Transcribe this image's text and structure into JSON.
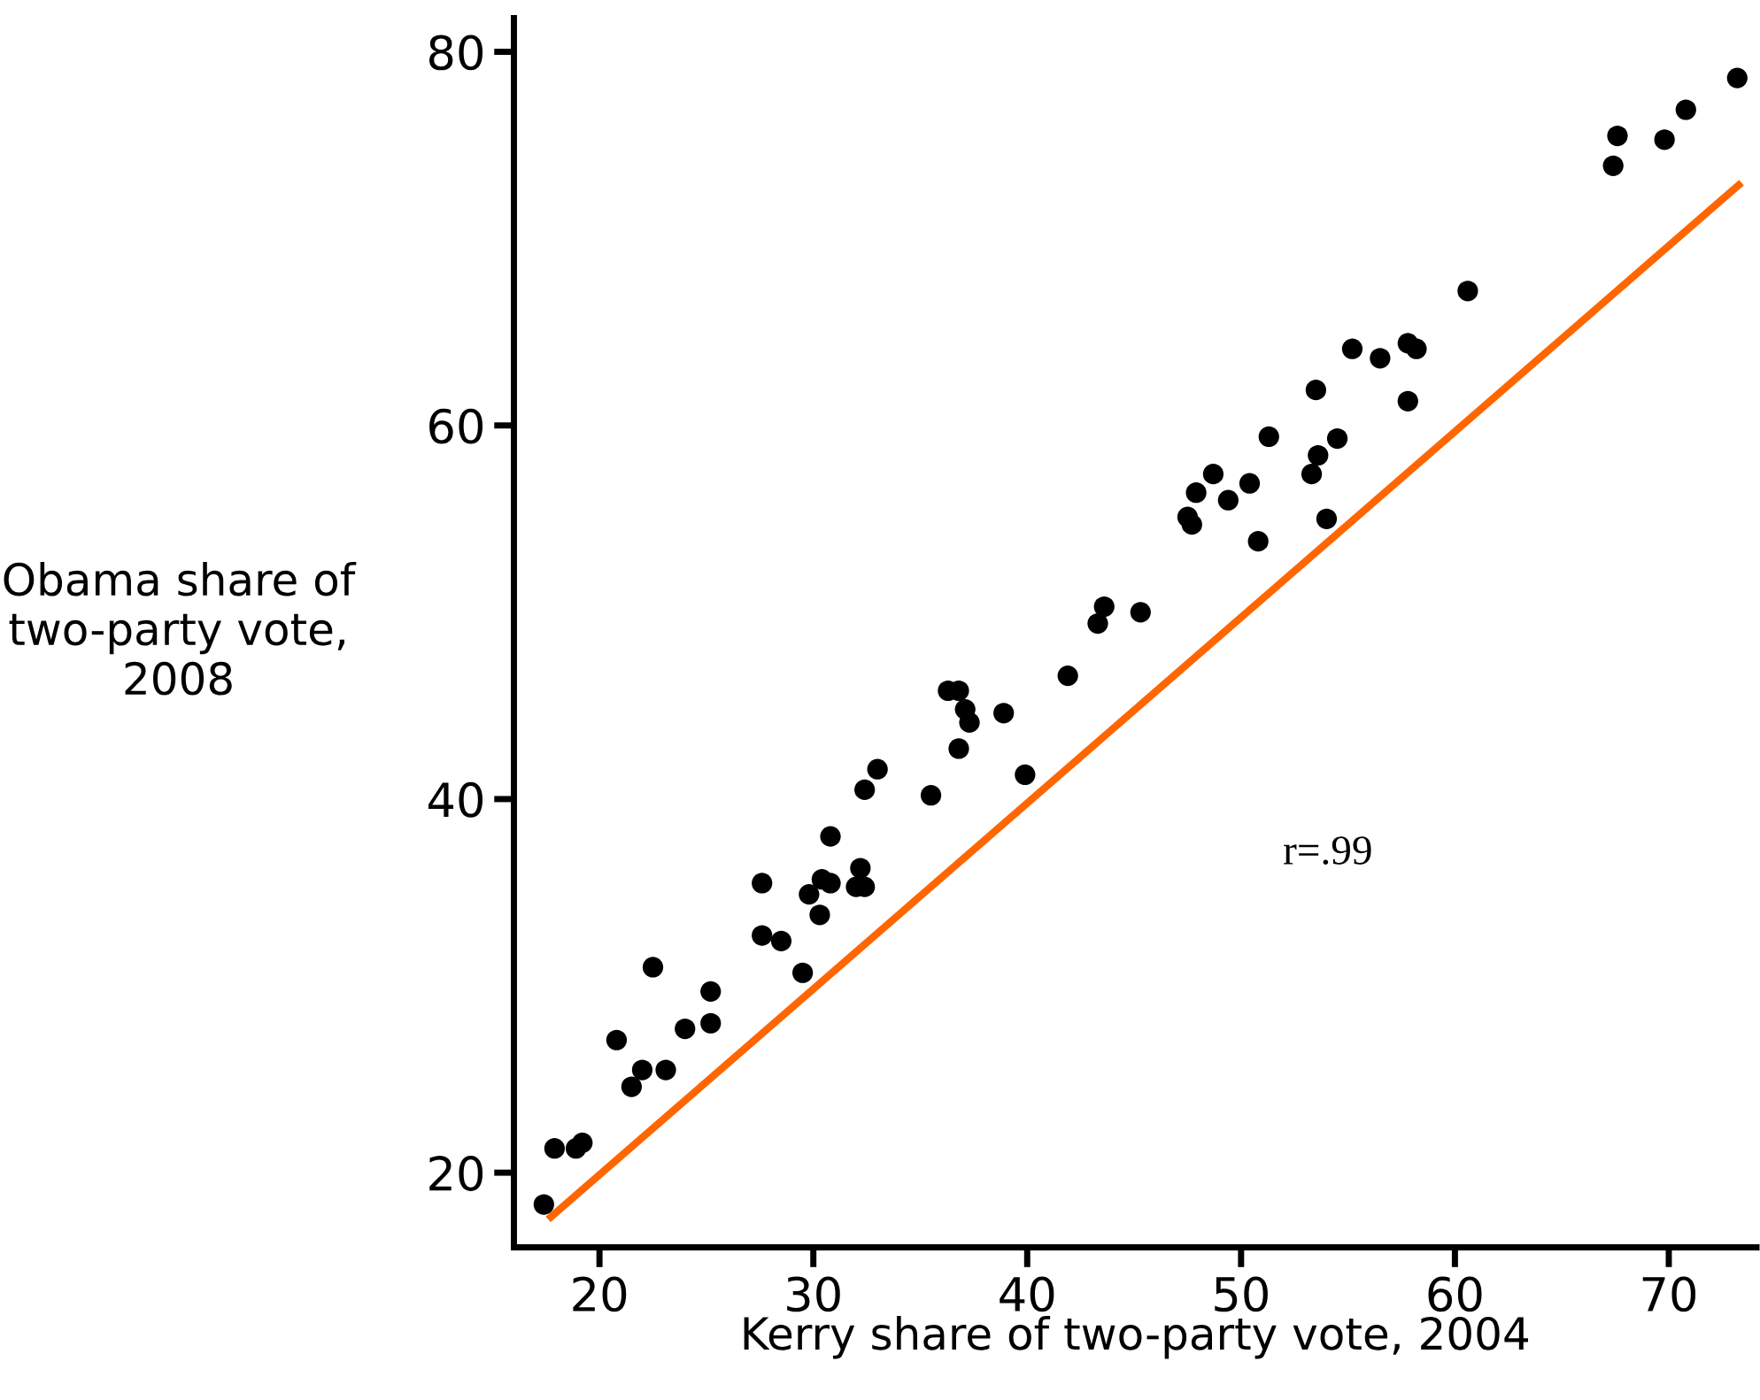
{
  "chart_data": {
    "type": "scatter",
    "xlabel": "Kerry share of two-party vote, 2004",
    "ylabel": "Obama share of\ntwo-party vote,\n2008",
    "annotations": [
      "r=.99"
    ],
    "xlim": [
      16,
      74.1
    ],
    "ylim": [
      16,
      81.8
    ],
    "xticks": [
      20,
      30,
      40,
      50,
      60,
      70
    ],
    "yticks": [
      20,
      40,
      60,
      80
    ],
    "grid": false,
    "legend": false,
    "marker": "circle",
    "series": [
      {
        "color": "#000000",
        "x": [
          17.4,
          17.9,
          18.9,
          19.2,
          20.8,
          21.5,
          22.0,
          22.5,
          23.1,
          24.0,
          25.2,
          25.2,
          27.6,
          27.6,
          28.5,
          29.5,
          29.8,
          30.3,
          30.4,
          30.8,
          30.8,
          32.0,
          32.4,
          32.2,
          32.4,
          33.0,
          35.5,
          36.8,
          37.3,
          37.1,
          36.3,
          36.8,
          38.9,
          39.9,
          41.9,
          43.3,
          43.6,
          45.3,
          47.5,
          47.7,
          47.9,
          48.7,
          49.4,
          50.4,
          50.8,
          51.3,
          53.3,
          53.6,
          53.5,
          54.0,
          54.5,
          55.2,
          56.5,
          57.8,
          58.2,
          57.8,
          60.6,
          67.4,
          67.6,
          69.8,
          70.8,
          73.2
        ],
        "values": [
          18.3,
          21.3,
          21.3,
          21.6,
          27.1,
          24.6,
          25.5,
          31.0,
          25.5,
          27.7,
          28.0,
          29.7,
          35.5,
          32.7,
          32.4,
          30.7,
          34.9,
          33.8,
          35.7,
          35.5,
          38.0,
          35.3,
          35.3,
          36.3,
          40.5,
          41.6,
          40.2,
          42.7,
          44.1,
          44.8,
          45.8,
          45.8,
          44.6,
          41.3,
          46.6,
          49.4,
          50.3,
          50.0,
          55.1,
          54.7,
          56.4,
          57.4,
          56.0,
          56.9,
          53.8,
          59.4,
          57.4,
          58.4,
          61.9,
          55.0,
          59.3,
          64.1,
          63.6,
          64.4,
          64.1,
          61.3,
          67.2,
          73.9,
          75.5,
          75.3,
          76.9,
          78.6
        ]
      },
      {
        "type": "line",
        "color": "#ff6600",
        "line_style": "solid",
        "marker": "none",
        "x": [
          17.6,
          73.4
        ],
        "values": [
          17.5,
          73.0
        ]
      }
    ]
  }
}
